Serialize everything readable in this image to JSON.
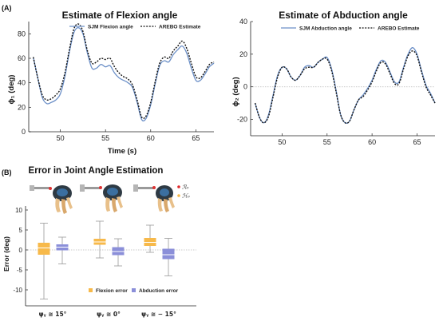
{
  "colors": {
    "sjm": "#6b8fc7",
    "arebo": "#111111",
    "flexion": "#f7b94a",
    "abduction": "#8b8fd9",
    "whisker": "#9a9a9a",
    "zero": "#b8b8b8"
  },
  "panel_a_label": "(A)",
  "panel_b_label": "(B)",
  "chart_data": [
    {
      "type": "line",
      "title": "Estimate of Flexion angle",
      "xlabel": "Time (s)",
      "ylabel": "ϕ₁ (deg)",
      "xlim": [
        46.5,
        67
      ],
      "ylim": [
        0,
        90
      ],
      "xticks": [
        50,
        55,
        60,
        65
      ],
      "yticks": [
        0,
        20,
        40,
        60,
        80
      ],
      "series": [
        {
          "name": "SJM Flexion angle",
          "x": [
            47.0,
            47.5,
            48.0,
            48.5,
            49.0,
            49.5,
            50.0,
            50.5,
            51.0,
            51.5,
            52.0,
            52.5,
            53.0,
            53.5,
            54.0,
            54.5,
            55.0,
            55.5,
            56.0,
            56.5,
            57.0,
            57.5,
            58.0,
            58.5,
            59.0,
            59.5,
            60.0,
            60.5,
            61.0,
            61.5,
            62.0,
            62.5,
            63.0,
            63.5,
            64.0,
            64.5,
            65.0,
            65.5,
            66.0,
            66.5,
            67.0
          ],
          "y": [
            61,
            44,
            28,
            23,
            24,
            26,
            31,
            45,
            65,
            81,
            85,
            80,
            64,
            52,
            52,
            55,
            53,
            54,
            48,
            44,
            42,
            40,
            36,
            24,
            10,
            11,
            22,
            39,
            54,
            58,
            57,
            63,
            67,
            70,
            64,
            52,
            42,
            42,
            47,
            53,
            56
          ]
        },
        {
          "name": "AREBO Estimate",
          "x": [
            47.0,
            47.5,
            48.0,
            48.5,
            49.0,
            49.5,
            50.0,
            50.5,
            51.0,
            51.5,
            52.0,
            52.5,
            53.0,
            53.5,
            54.0,
            54.5,
            55.0,
            55.5,
            56.0,
            56.5,
            57.0,
            57.5,
            58.0,
            58.5,
            59.0,
            59.5,
            60.0,
            60.5,
            61.0,
            61.5,
            62.0,
            62.5,
            63.0,
            63.5,
            64.0,
            64.5,
            65.0,
            65.5,
            66.0,
            66.5,
            67.0
          ],
          "y": [
            61,
            44,
            30,
            26,
            27,
            30,
            35,
            48,
            67,
            84,
            88,
            82,
            66,
            56,
            57,
            60,
            59,
            60,
            53,
            48,
            45,
            43,
            38,
            26,
            12,
            13,
            24,
            41,
            56,
            61,
            60,
            66,
            70,
            74,
            68,
            56,
            45,
            44,
            49,
            55,
            57
          ]
        }
      ]
    },
    {
      "type": "line",
      "title": "Estimate of Abduction angle",
      "xlabel": "Time (s)",
      "ylabel": "ϕ₂ (deg)",
      "xlim": [
        46.5,
        67
      ],
      "ylim": [
        -30,
        40
      ],
      "xticks": [
        50,
        55,
        60,
        65
      ],
      "yticks": [
        -20,
        0,
        20,
        40
      ],
      "series": [
        {
          "name": "SJM Abduction angle",
          "x": [
            47.0,
            47.5,
            48.0,
            48.5,
            49.0,
            49.5,
            50.0,
            50.5,
            51.0,
            51.5,
            52.0,
            52.5,
            53.0,
            53.5,
            54.0,
            54.5,
            55.0,
            55.5,
            56.0,
            56.5,
            57.0,
            57.5,
            58.0,
            58.5,
            59.0,
            59.5,
            60.0,
            60.5,
            61.0,
            61.5,
            62.0,
            62.5,
            63.0,
            63.5,
            64.0,
            64.5,
            65.0,
            65.5,
            66.0,
            66.5,
            67.0
          ],
          "y": [
            -10,
            -19,
            -22,
            -17,
            -5,
            7,
            12,
            11,
            6,
            4,
            7,
            12,
            13,
            12,
            15,
            17,
            18,
            11,
            -2,
            -17,
            -22,
            -21,
            -14,
            -8,
            -5,
            -1,
            4,
            11,
            16,
            15,
            9,
            3,
            3,
            12,
            20,
            24,
            20,
            10,
            1,
            -4,
            -10
          ]
        },
        {
          "name": "AREBO Estimate",
          "x": [
            47.0,
            47.5,
            48.0,
            48.5,
            49.0,
            49.5,
            50.0,
            50.5,
            51.0,
            51.5,
            52.0,
            52.5,
            53.0,
            53.5,
            54.0,
            54.5,
            55.0,
            55.5,
            56.0,
            56.5,
            57.0,
            57.5,
            58.0,
            58.5,
            59.0,
            59.5,
            60.0,
            60.5,
            61.0,
            61.5,
            62.0,
            62.5,
            63.0,
            63.5,
            64.0,
            64.5,
            65.0,
            65.5,
            66.0,
            66.5,
            67.0
          ],
          "y": [
            -10,
            -19,
            -22,
            -18,
            -6,
            6,
            12,
            11,
            6,
            4,
            7,
            11,
            12,
            12,
            15,
            17,
            17,
            10,
            -3,
            -17,
            -22,
            -21,
            -14,
            -8,
            -6,
            -2,
            3,
            10,
            15,
            14,
            8,
            2,
            2,
            11,
            19,
            22,
            19,
            9,
            0,
            -5,
            -10
          ]
        }
      ]
    },
    {
      "type": "box",
      "title": "Error in Joint  Angle  Estimation",
      "ylabel": "Error (deg)",
      "ylim": [
        -14,
        11
      ],
      "yticks": [
        -10,
        -5,
        0,
        5,
        10
      ],
      "categories": [
        "ψᵧ ≅ 15°",
        "ψᵧ ≅ 0°",
        "ψᵧ ≅ − 15°"
      ],
      "legend": [
        "Flexion error",
        "Abduction error"
      ],
      "robot_legend": [
        "ℛ₀",
        "ℋ₀"
      ],
      "series": [
        {
          "name": "Flexion error",
          "boxes": [
            {
              "min": -12.3,
              "q1": -1.2,
              "median": 0.5,
              "q3": 1.8,
              "max": 6.7
            },
            {
              "min": -2.0,
              "q1": 1.3,
              "median": 2.0,
              "q3": 2.8,
              "max": 7.2
            },
            {
              "min": -0.6,
              "q1": 1.0,
              "median": 1.9,
              "q3": 3.0,
              "max": 6.2
            }
          ]
        },
        {
          "name": "Abduction error",
          "boxes": [
            {
              "min": -3.5,
              "q1": -0.1,
              "median": 0.7,
              "q3": 1.4,
              "max": 3.2
            },
            {
              "min": -4.0,
              "q1": -1.3,
              "median": -0.4,
              "q3": 0.7,
              "max": 2.8
            },
            {
              "min": -6.5,
              "q1": -2.3,
              "median": -1.2,
              "q3": 0.3,
              "max": 2.9
            }
          ]
        }
      ]
    }
  ]
}
